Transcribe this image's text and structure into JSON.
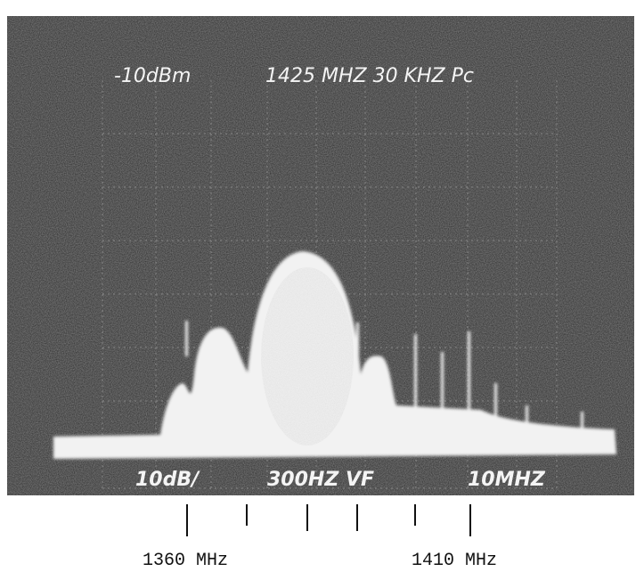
{
  "screen": {
    "reference_level": "-10dBm",
    "settings": "1425 MHZ 30 KHZ Pc",
    "scale": "10dB/",
    "video_filter": "300HZ VF",
    "span": "10MHZ"
  },
  "axis_labels": [
    "1360 MHz",
    "1410 MHz"
  ]
}
